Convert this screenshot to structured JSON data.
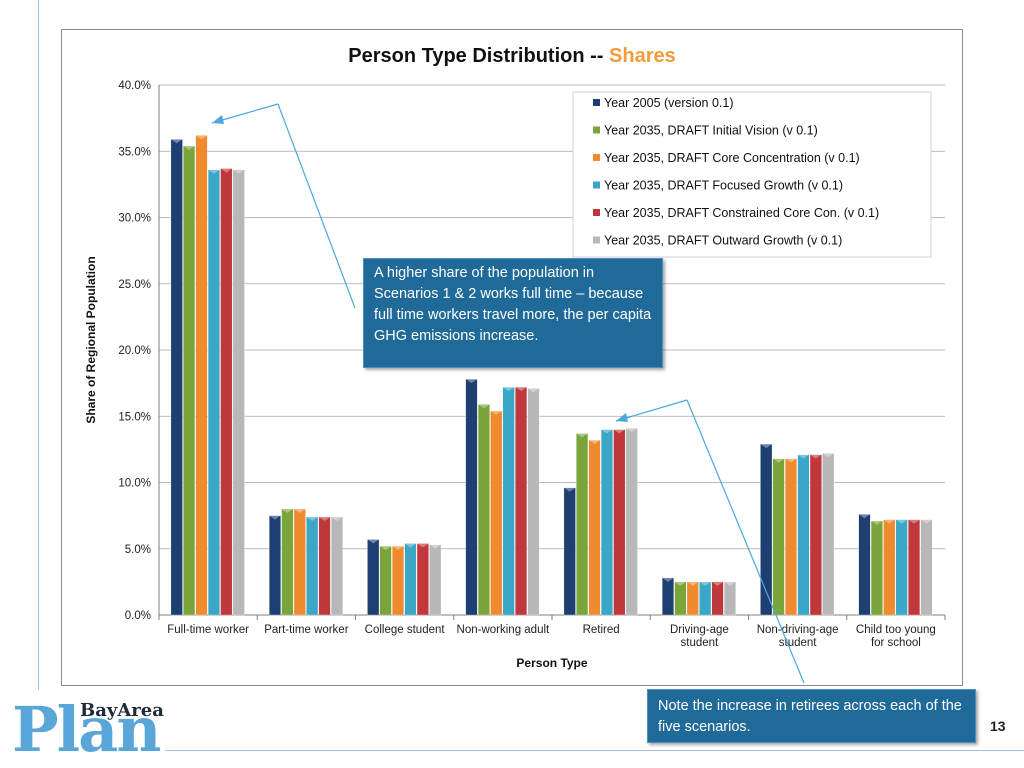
{
  "slide": {
    "page_number": "13",
    "logo_small": "BayArea",
    "logo_big": "Plan"
  },
  "callouts": {
    "full_time": "A higher share of the population in Scenarios 1 & 2 works full time – because full time workers travel more, the per capita GHG emissions increase.",
    "retirees": "Note the increase in retirees across each of the five scenarios."
  },
  "chart_data": {
    "type": "bar",
    "title": "Person Type Distribution -- ",
    "title_highlight": "Shares",
    "title_highlight_color": "#f59a3a",
    "xlabel": "Person Type",
    "ylabel": "Share of Regional Population",
    "ylim": [
      0,
      40
    ],
    "yticks": [
      "0.0%",
      "5.0%",
      "10.0%",
      "15.0%",
      "20.0%",
      "25.0%",
      "30.0%",
      "35.0%",
      "40.0%"
    ],
    "grid": true,
    "legend_position": "top-right",
    "categories": [
      [
        "Full-time worker"
      ],
      [
        "Part-time worker"
      ],
      [
        "College student"
      ],
      [
        "Non-working adult"
      ],
      [
        "Retired"
      ],
      [
        "Driving-age",
        "student"
      ],
      [
        "Non-driving-age",
        "student"
      ],
      [
        "Child too young",
        "for school"
      ]
    ],
    "series": [
      {
        "name": "Year 2005 (version 0.1)",
        "color": "#1f3f73",
        "values": [
          35.9,
          7.5,
          5.7,
          17.8,
          9.6,
          2.8,
          12.9,
          7.6
        ]
      },
      {
        "name": "Year 2035, DRAFT Initial Vision (v 0.1)",
        "color": "#7aa53a",
        "values": [
          35.4,
          8.0,
          5.2,
          15.9,
          13.7,
          2.5,
          11.8,
          7.1
        ]
      },
      {
        "name": "Year 2035, DRAFT Core Concentration (v 0.1)",
        "color": "#ef8a2e",
        "values": [
          36.2,
          8.0,
          5.2,
          15.4,
          13.2,
          2.5,
          11.8,
          7.2
        ]
      },
      {
        "name": "Year 2035, DRAFT Focused Growth (v 0.1)",
        "color": "#3aa6c8",
        "values": [
          33.6,
          7.4,
          5.4,
          17.2,
          14.0,
          2.5,
          12.1,
          7.2
        ]
      },
      {
        "name": "Year 2035, DRAFT Constrained Core Con. (v 0.1)",
        "color": "#c0383c",
        "values": [
          33.7,
          7.4,
          5.4,
          17.2,
          14.0,
          2.5,
          12.1,
          7.2
        ]
      },
      {
        "name": "Year 2035, DRAFT Outward Growth (v 0.1)",
        "color": "#b8b8b8",
        "values": [
          33.6,
          7.4,
          5.3,
          17.1,
          14.1,
          2.5,
          12.2,
          7.2
        ]
      }
    ]
  }
}
